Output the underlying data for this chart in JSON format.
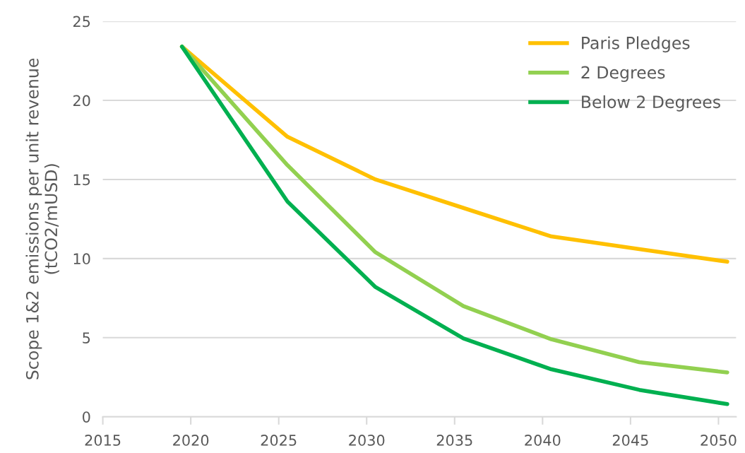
{
  "chart_data": {
    "type": "line",
    "ylabel": "Scope 1&2 emissions per unit revenue\n(tCO2/mUSD)",
    "x": [
      2019.5,
      2025.5,
      2030.5,
      2035.5,
      2040.5,
      2045.5,
      2050.5
    ],
    "series": [
      {
        "name": "Paris Pledges",
        "color": "#ffc000",
        "values": [
          23.4,
          17.7,
          15.0,
          13.2,
          11.4,
          10.6,
          9.8
        ]
      },
      {
        "name": "2 Degrees",
        "color": "#92d050",
        "values": [
          23.4,
          15.9,
          10.4,
          7.0,
          4.9,
          3.45,
          2.8
        ]
      },
      {
        "name": "Below 2 Degrees",
        "color": "#00b050",
        "values": [
          23.4,
          13.6,
          8.2,
          4.95,
          3.0,
          1.7,
          0.8
        ]
      }
    ],
    "xlim": [
      2015,
      2051
    ],
    "xticks": [
      2015,
      2020,
      2025,
      2030,
      2035,
      2040,
      2045,
      2050
    ],
    "ylim": [
      0,
      25
    ],
    "yticks": [
      0,
      5,
      10,
      15,
      20,
      25
    ],
    "grid": "y",
    "legend": "top right",
    "marker": "none",
    "line_style": "solid"
  }
}
